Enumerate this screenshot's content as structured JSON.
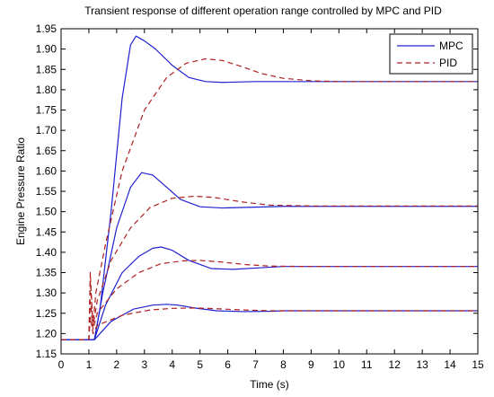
{
  "chart_data": {
    "type": "line",
    "title": "Transient response of different operation range controlled by MPC and PID",
    "xlabel": "Time (s)",
    "ylabel": "Engine Pressure Ratio",
    "xlim": [
      0,
      15
    ],
    "ylim": [
      1.15,
      1.95
    ],
    "xticks": [
      "0",
      "1",
      "2",
      "3",
      "4",
      "5",
      "6",
      "7",
      "8",
      "9",
      "10",
      "11",
      "12",
      "13",
      "14",
      "15"
    ],
    "yticks": [
      "1.15",
      "1.20",
      "1.25",
      "1.30",
      "1.35",
      "1.40",
      "1.45",
      "1.50",
      "1.55",
      "1.60",
      "1.65",
      "1.70",
      "1.75",
      "1.80",
      "1.85",
      "1.90",
      "1.95"
    ],
    "grid": false,
    "legend_position": "top-right",
    "legend": [
      {
        "label": "MPC",
        "color": "#2020d0",
        "style": "solid"
      },
      {
        "label": "PID",
        "color": "#b02020",
        "style": "dashed"
      }
    ],
    "series": [
      {
        "name": "MPC",
        "color": "#2020d0",
        "style": "solid",
        "x": [
          0,
          1.2,
          1.4,
          1.8,
          2.2,
          2.5,
          2.7,
          3.0,
          3.4,
          4.0,
          4.6,
          5.2,
          5.8,
          7,
          9,
          12,
          15
        ],
        "y": [
          1.185,
          1.185,
          1.26,
          1.5,
          1.78,
          1.91,
          1.932,
          1.92,
          1.9,
          1.86,
          1.83,
          1.82,
          1.818,
          1.82,
          1.82,
          1.82,
          1.82
        ]
      },
      {
        "name": "PID",
        "color": "#b02020",
        "style": "dashed",
        "x": [
          0,
          1.0,
          1.05,
          1.15,
          1.25,
          1.6,
          2.2,
          3.0,
          3.8,
          4.5,
          5.2,
          5.8,
          6.5,
          7.2,
          8.0,
          9.0,
          10,
          12,
          15
        ],
        "y": [
          1.185,
          1.185,
          1.35,
          1.22,
          1.3,
          1.42,
          1.6,
          1.75,
          1.83,
          1.865,
          1.876,
          1.872,
          1.857,
          1.84,
          1.828,
          1.822,
          1.82,
          1.82,
          1.82
        ]
      },
      {
        "name": "MPC",
        "color": "#2020d0",
        "style": "solid",
        "x": [
          0,
          1.2,
          1.5,
          2.0,
          2.5,
          2.9,
          3.3,
          3.8,
          4.3,
          5.0,
          5.8,
          7,
          8,
          15
        ],
        "y": [
          1.185,
          1.185,
          1.3,
          1.46,
          1.56,
          1.596,
          1.59,
          1.56,
          1.53,
          1.512,
          1.509,
          1.511,
          1.513,
          1.513
        ]
      },
      {
        "name": "PID",
        "color": "#b02020",
        "style": "dashed",
        "x": [
          0,
          1.0,
          1.05,
          1.15,
          1.3,
          1.8,
          2.5,
          3.2,
          4.0,
          4.8,
          5.5,
          6.5,
          7.5,
          9,
          15
        ],
        "y": [
          1.185,
          1.185,
          1.33,
          1.22,
          1.28,
          1.38,
          1.46,
          1.51,
          1.533,
          1.538,
          1.535,
          1.524,
          1.516,
          1.514,
          1.514
        ]
      },
      {
        "name": "MPC",
        "color": "#2020d0",
        "style": "solid",
        "x": [
          0,
          1.2,
          1.6,
          2.2,
          2.8,
          3.3,
          3.6,
          4.0,
          4.6,
          5.4,
          6.2,
          7.2,
          8,
          15
        ],
        "y": [
          1.185,
          1.185,
          1.27,
          1.35,
          1.39,
          1.41,
          1.413,
          1.405,
          1.38,
          1.36,
          1.358,
          1.362,
          1.365,
          1.365
        ]
      },
      {
        "name": "PID",
        "color": "#b02020",
        "style": "dashed",
        "x": [
          0,
          1.0,
          1.05,
          1.15,
          1.3,
          2.0,
          2.8,
          3.6,
          4.4,
          5.0,
          5.8,
          6.6,
          7.5,
          9,
          15
        ],
        "y": [
          1.185,
          1.185,
          1.28,
          1.21,
          1.25,
          1.31,
          1.35,
          1.372,
          1.379,
          1.38,
          1.376,
          1.37,
          1.366,
          1.365,
          1.365
        ]
      },
      {
        "name": "MPC",
        "color": "#2020d0",
        "style": "solid",
        "x": [
          0,
          1.2,
          1.8,
          2.6,
          3.3,
          3.8,
          4.2,
          4.8,
          5.6,
          6.6,
          7.6,
          8,
          15
        ],
        "y": [
          1.185,
          1.185,
          1.23,
          1.26,
          1.27,
          1.272,
          1.27,
          1.263,
          1.256,
          1.254,
          1.255,
          1.256,
          1.256
        ]
      },
      {
        "name": "PID",
        "color": "#b02020",
        "style": "dashed",
        "x": [
          0,
          1.0,
          1.05,
          1.15,
          1.3,
          2.2,
          3.2,
          4.0,
          4.8,
          5.6,
          6.6,
          7.6,
          9,
          15
        ],
        "y": [
          1.185,
          1.185,
          1.24,
          1.2,
          1.22,
          1.245,
          1.258,
          1.262,
          1.263,
          1.261,
          1.258,
          1.256,
          1.256,
          1.256
        ]
      }
    ]
  }
}
